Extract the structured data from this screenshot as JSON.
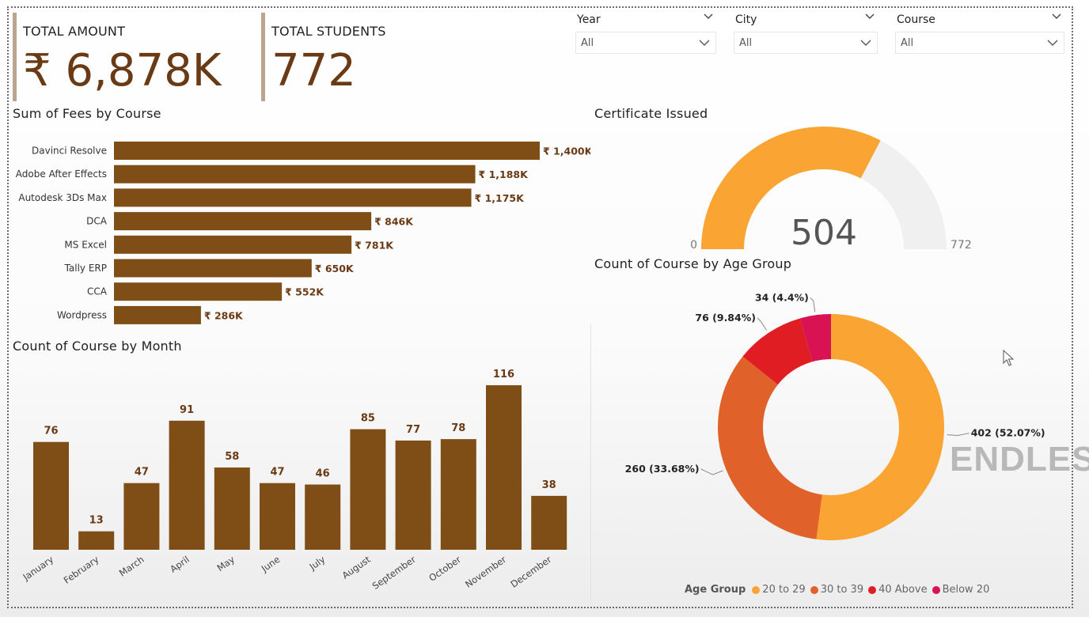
{
  "kpis": {
    "total_amount": {
      "label": "TOTAL AMOUNT",
      "value": "₹ 6,878K"
    },
    "total_students": {
      "label": "TOTAL STUDENTS",
      "value": "772"
    }
  },
  "slicers": [
    {
      "label": "Year",
      "value": "All"
    },
    {
      "label": "City",
      "value": "All"
    },
    {
      "label": "Course",
      "value": "All"
    }
  ],
  "icons": {
    "dropdown": "chevron-down-icon",
    "cursor": "mouse-pointer-icon"
  },
  "watermark": "ENDLESS",
  "colors": {
    "bar": "#7e4e16",
    "label": "#6a3a14",
    "gauge_fill": "#f9a433",
    "gauge_track": "#f0f0f0",
    "age_20_29": "#f9a433",
    "age_30_39": "#e0622a",
    "age_40_above": "#e01d22",
    "age_below_20": "#d81253"
  },
  "chart_data": [
    {
      "type": "bar",
      "orientation": "horizontal",
      "title": "Sum of Fees by Course",
      "categories": [
        "Davinci Resolve",
        "Adobe After Effects",
        "Autodesk 3Ds Max",
        "DCA",
        "MS Excel",
        "Tally ERP",
        "CCA",
        "Wordpress"
      ],
      "values": [
        1400,
        1188,
        1175,
        846,
        781,
        650,
        552,
        286
      ],
      "data_labels": [
        "₹ 1,400K",
        "₹ 1,188K",
        "₹ 1,175K",
        "₹ 846K",
        "₹ 781K",
        "₹ 650K",
        "₹ 552K",
        "₹ 286K"
      ],
      "xlabel": "",
      "ylabel": "",
      "xlim": [
        0,
        1400
      ]
    },
    {
      "type": "gauge",
      "title": "Certificate Issued",
      "value": 504,
      "min": 0,
      "max": 772,
      "value_label": "504",
      "min_label": "0",
      "max_label": "772"
    },
    {
      "type": "bar",
      "title": "Count of Course by Month",
      "categories": [
        "January",
        "February",
        "March",
        "April",
        "May",
        "June",
        "July",
        "August",
        "September",
        "October",
        "November",
        "December"
      ],
      "values": [
        76,
        13,
        47,
        91,
        58,
        47,
        46,
        85,
        77,
        78,
        116,
        38
      ],
      "xlabel": "",
      "ylabel": "",
      "ylim": [
        0,
        116
      ]
    },
    {
      "type": "pie",
      "donut": true,
      "title": "Count of Course by Age Group",
      "legend_title": "Age Group",
      "legend_position": "bottom",
      "categories": [
        "20 to 29",
        "30 to 39",
        "40 Above",
        "Below 20"
      ],
      "values": [
        402,
        260,
        76,
        34
      ],
      "data_labels": [
        "402 (52.07%)",
        "260 (33.68%)",
        "76 (9.84%)",
        "34 (4.4%)"
      ]
    }
  ]
}
